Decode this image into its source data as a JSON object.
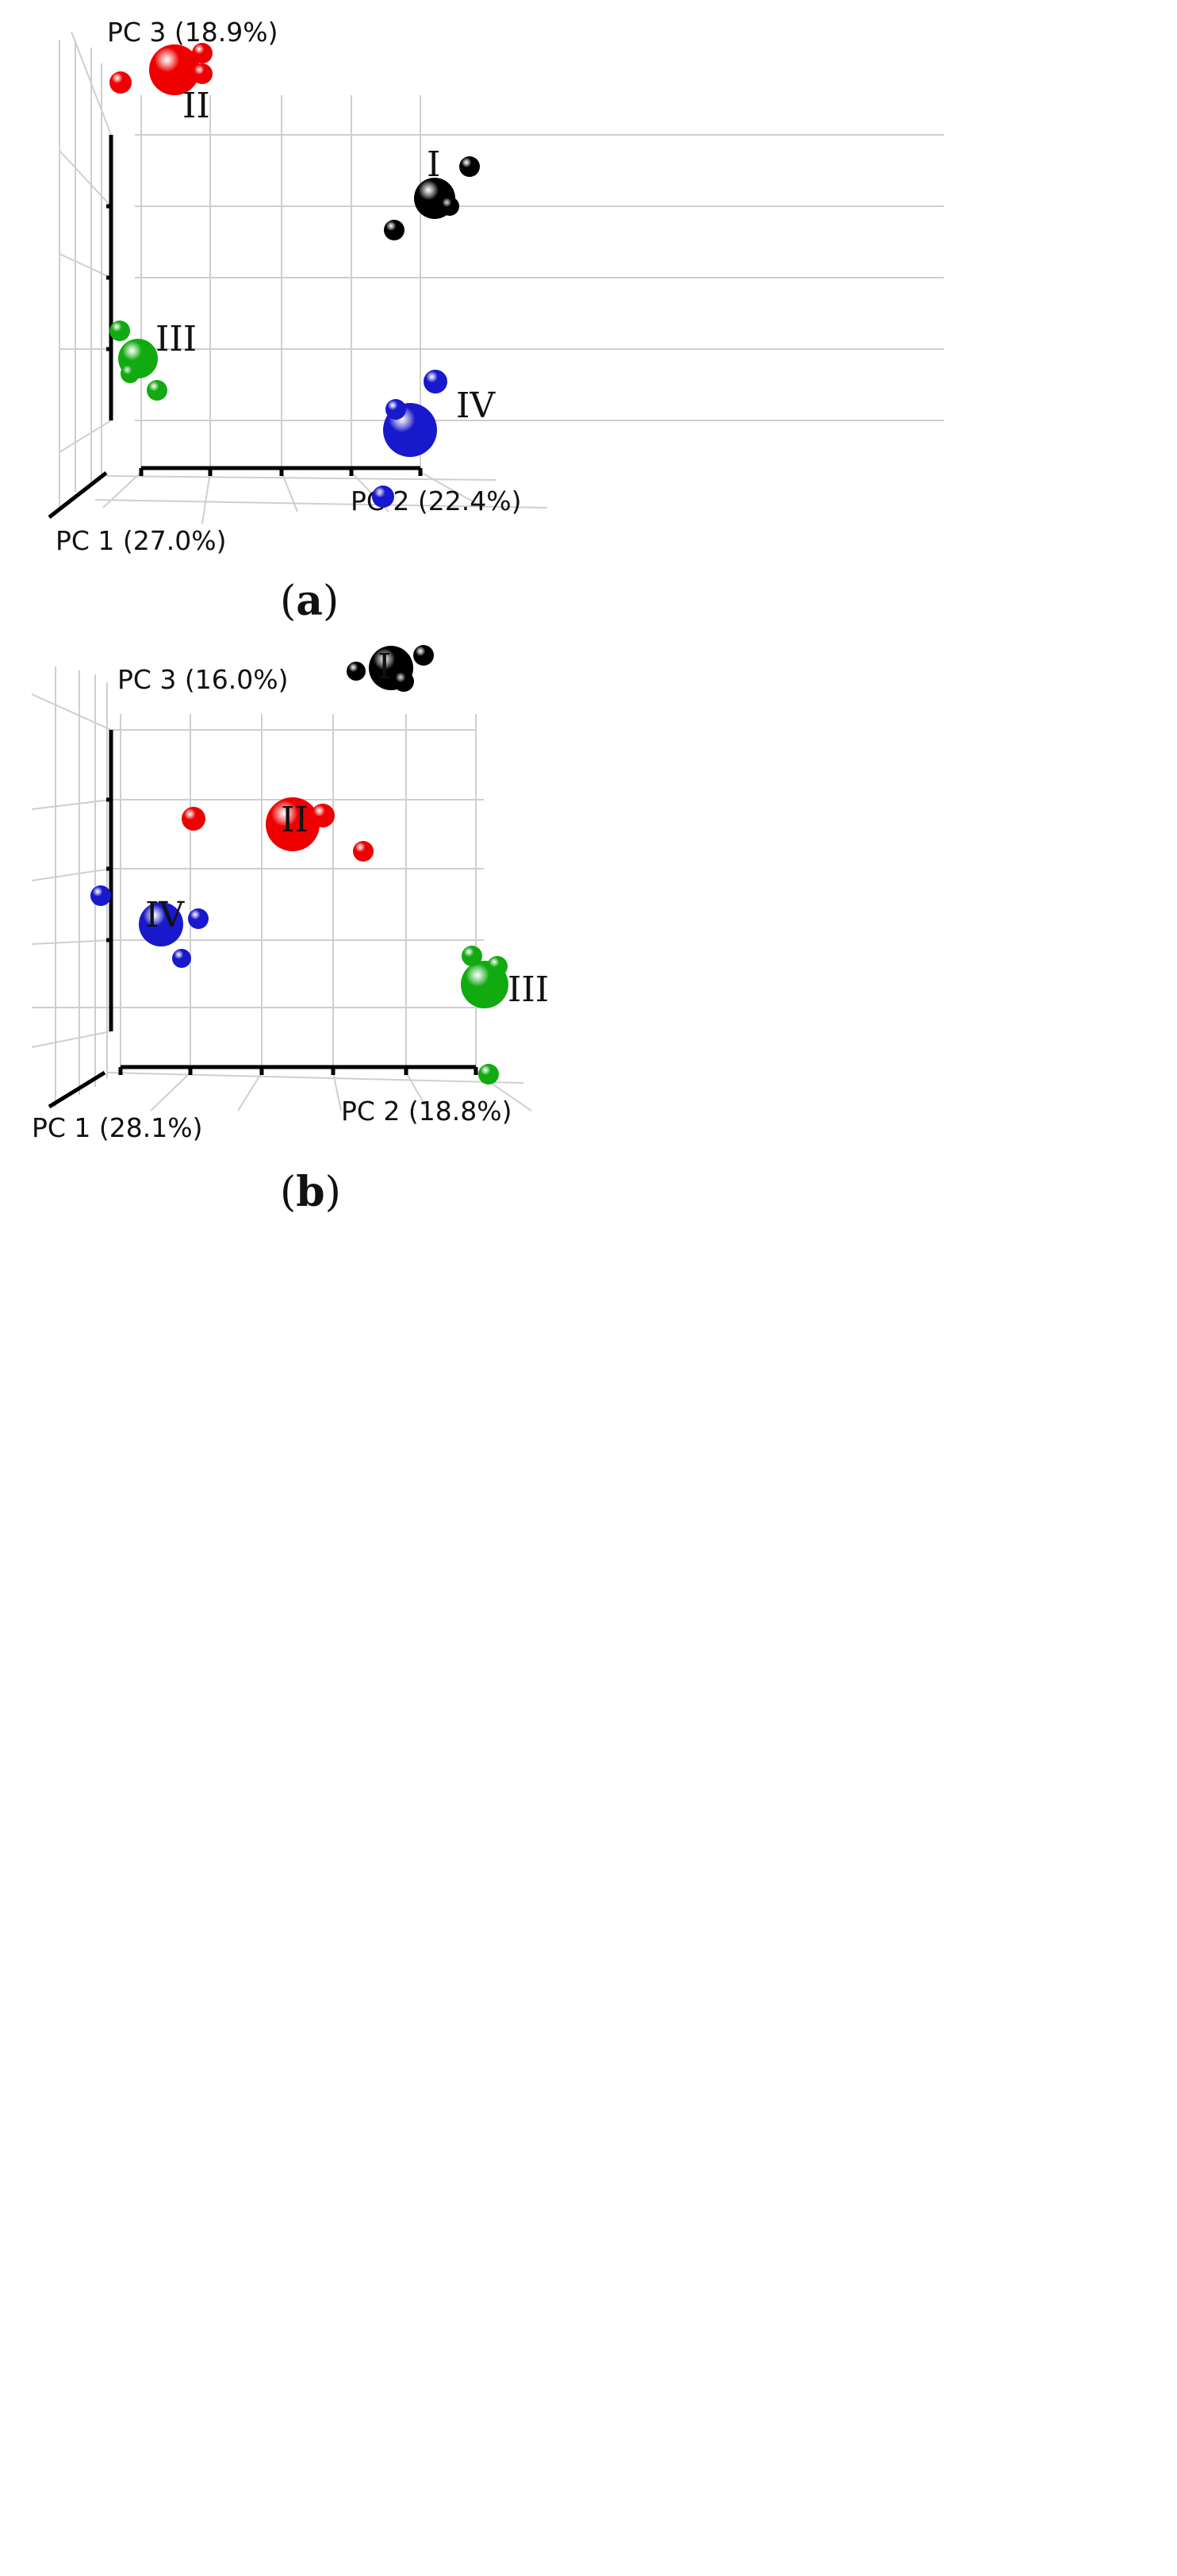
{
  "chart_data": [
    {
      "type": "scatter",
      "panel_label": "a",
      "axes": {
        "x": "PC 1 (27.0%)",
        "y": "PC 2 (22.4%)",
        "z": "PC 3 (18.9%)"
      },
      "grid": true,
      "groups": [
        {
          "name": "I",
          "color": "#000000",
          "centroid": {
            "x": 0.8,
            "y": 0.85,
            "z": 0.8
          },
          "points": [
            {
              "x": 0.9,
              "y": 0.95,
              "z": 0.9
            },
            {
              "x": 0.85,
              "y": 0.9,
              "z": 0.75
            },
            {
              "x": 0.7,
              "y": 0.7,
              "z": 0.65
            }
          ]
        },
        {
          "name": "II",
          "color": "#ee0000",
          "centroid": {
            "x": 0.2,
            "y": 0.25,
            "z": 0.97
          },
          "points": [
            {
              "x": 0.25,
              "y": 0.3,
              "z": 1.0
            },
            {
              "x": 0.25,
              "y": 0.3,
              "z": 0.95
            },
            {
              "x": 0.1,
              "y": 0.05,
              "z": 0.9
            }
          ]
        },
        {
          "name": "III",
          "color": "#11aa11",
          "centroid": {
            "x": 0.2,
            "y": 0.05,
            "z": 0.3
          },
          "points": [
            {
              "x": 0.1,
              "y": 0.0,
              "z": 0.4
            },
            {
              "x": 0.15,
              "y": 0.0,
              "z": 0.25
            },
            {
              "x": 0.25,
              "y": 0.1,
              "z": 0.2
            }
          ]
        },
        {
          "name": "IV",
          "color": "#1818cc",
          "centroid": {
            "x": 0.3,
            "y": 0.8,
            "z": 0.05
          },
          "points": [
            {
              "x": 0.4,
              "y": 0.9,
              "z": 0.25
            },
            {
              "x": 0.25,
              "y": 0.75,
              "z": 0.15
            },
            {
              "x": 0.05,
              "y": 0.7,
              "z": 0.0
            }
          ]
        }
      ]
    },
    {
      "type": "scatter",
      "panel_label": "b",
      "axes": {
        "x": "PC 1 (28.1%)",
        "y": "PC 2 (18.8%)",
        "z": "PC 3 (16.0%)"
      },
      "grid": true,
      "groups": [
        {
          "name": "I",
          "color": "#000000",
          "centroid": {
            "x": 0.8,
            "y": 0.85,
            "z": 0.9
          },
          "points": [
            {
              "x": 0.9,
              "y": 0.95,
              "z": 1.0
            },
            {
              "x": 0.85,
              "y": 0.9,
              "z": 0.85
            },
            {
              "x": 0.65,
              "y": 0.7,
              "z": 0.95
            }
          ]
        },
        {
          "name": "II",
          "color": "#ee0000",
          "centroid": {
            "x": 0.5,
            "y": 0.5,
            "z": 0.6
          },
          "points": [
            {
              "x": 0.55,
              "y": 0.55,
              "z": 0.62
            },
            {
              "x": 0.6,
              "y": 0.65,
              "z": 0.5
            },
            {
              "x": 0.2,
              "y": 0.2,
              "z": 0.65
            }
          ]
        },
        {
          "name": "III",
          "color": "#11aa11",
          "centroid": {
            "x": 0.95,
            "y": 1.0,
            "z": 0.2
          },
          "points": [
            {
              "x": 1.0,
              "y": 1.0,
              "z": 0.25
            },
            {
              "x": 0.9,
              "y": 0.95,
              "z": 0.22
            },
            {
              "x": 0.95,
              "y": 1.0,
              "z": 0.0
            }
          ]
        },
        {
          "name": "IV",
          "color": "#1818cc",
          "centroid": {
            "x": 0.2,
            "y": 0.15,
            "z": 0.4
          },
          "points": [
            {
              "x": 0.25,
              "y": 0.2,
              "z": 0.42
            },
            {
              "x": 0.2,
              "y": 0.15,
              "z": 0.3
            },
            {
              "x": 0.0,
              "y": 0.0,
              "z": 0.45
            }
          ]
        }
      ]
    }
  ]
}
